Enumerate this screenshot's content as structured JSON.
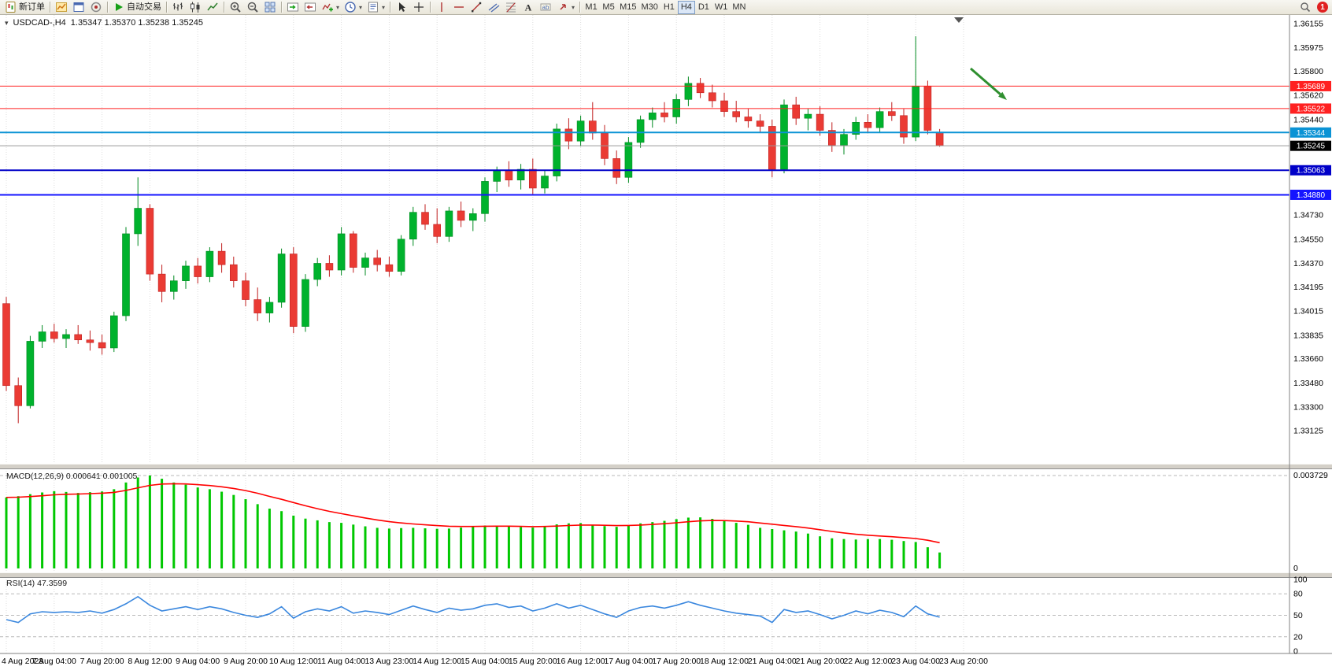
{
  "window": {
    "symbol_title": "USDCAD-,H4",
    "ohlc": "1.35347 1.35370 1.35238 1.35245"
  },
  "toolbar": {
    "notification_count": "1",
    "items": [
      {
        "type": "button",
        "name": "new-order-button",
        "icon": "new-order-icon",
        "label": "新订单"
      },
      {
        "type": "sep"
      },
      {
        "type": "button",
        "name": "charts-button",
        "icon": "charts-icon"
      },
      {
        "type": "button",
        "name": "data-window-button",
        "icon": "data-window-icon"
      },
      {
        "type": "button",
        "name": "navigator-button",
        "icon": "navigator-icon"
      },
      {
        "type": "sep"
      },
      {
        "type": "button",
        "name": "autotrading-button",
        "icon": "autotrading-icon",
        "label": "自动交易"
      },
      {
        "type": "sep"
      },
      {
        "type": "button",
        "name": "bar-chart-button",
        "icon": "bars-icon"
      },
      {
        "type": "button",
        "name": "candlestick-chart-button",
        "icon": "candles-icon"
      },
      {
        "type": "button",
        "name": "line-chart-button",
        "icon": "line-chart-icon"
      },
      {
        "type": "sep"
      },
      {
        "type": "button",
        "name": "zoom-in-button",
        "icon": "zoom-in-icon"
      },
      {
        "type": "button",
        "name": "zoom-out-button",
        "icon": "zoom-out-icon"
      },
      {
        "type": "button",
        "name": "tile-windows-button",
        "icon": "tile-windows-icon"
      },
      {
        "type": "sep"
      },
      {
        "type": "button",
        "name": "auto-scroll-button",
        "icon": "auto-scroll-icon"
      },
      {
        "type": "button",
        "name": "chart-shift-button",
        "icon": "chart-shift-icon"
      },
      {
        "type": "button",
        "name": "indicators-button",
        "icon": "indicators-icon",
        "dropdown": true
      },
      {
        "type": "button",
        "name": "periods-button",
        "icon": "periods-icon",
        "dropdown": true
      },
      {
        "type": "button",
        "name": "templates-button",
        "icon": "templates-icon",
        "dropdown": true
      },
      {
        "type": "sep"
      },
      {
        "type": "button",
        "name": "cursor-button",
        "icon": "cursor-icon"
      },
      {
        "type": "button",
        "name": "crosshair-button",
        "icon": "crosshair-icon"
      },
      {
        "type": "sep"
      },
      {
        "type": "button",
        "name": "vertical-line-button",
        "icon": "vline-icon"
      },
      {
        "type": "button",
        "name": "horizontal-line-button",
        "icon": "hline-icon"
      },
      {
        "type": "button",
        "name": "trendline-button",
        "icon": "trendline-icon"
      },
      {
        "type": "button",
        "name": "equidistant-channel-button",
        "icon": "channel-icon"
      },
      {
        "type": "button",
        "name": "fibonacci-button",
        "icon": "fibonacci-icon"
      },
      {
        "type": "button",
        "name": "text-button",
        "icon": "text-icon"
      },
      {
        "type": "button",
        "name": "text-label-button",
        "icon": "label-icon"
      },
      {
        "type": "button",
        "name": "arrows-button",
        "icon": "arrows-icon",
        "dropdown": true
      },
      {
        "type": "sep"
      },
      {
        "type": "tf",
        "name": "timeframe-m1-button",
        "label": "M1"
      },
      {
        "type": "tf",
        "name": "timeframe-m5-button",
        "label": "M5"
      },
      {
        "type": "tf",
        "name": "timeframe-m15-button",
        "label": "M15"
      },
      {
        "type": "tf",
        "name": "timeframe-m30-button",
        "label": "M30"
      },
      {
        "type": "tf",
        "name": "timeframe-h1-button",
        "label": "H1"
      },
      {
        "type": "tf",
        "name": "timeframe-h4-button",
        "label": "H4",
        "active": true
      },
      {
        "type": "tf",
        "name": "timeframe-d1-button",
        "label": "D1"
      },
      {
        "type": "tf",
        "name": "timeframe-w1-button",
        "label": "W1"
      },
      {
        "type": "tf",
        "name": "timeframe-mn-button",
        "label": "MN"
      }
    ]
  },
  "colors": {
    "bull": "#00b22d",
    "bull_edge": "#008a20",
    "bear": "#ea3b34",
    "bear_edge": "#c02020",
    "macd_hist": "#00c800",
    "macd_signal": "#ff0000",
    "rsi_line": "#3a87de",
    "grid": "#dcdcdc",
    "level_dash": "#b8b8b8",
    "axis_line": "#808080",
    "arrow": "#2f8f2f",
    "current_price_line": "#9a9a9a",
    "current_price_badge": "#000000"
  },
  "chart_data": {
    "type": "candlestick",
    "title": "USDCAD-,H4",
    "symbol": "USDCAD-",
    "timeframe": "H4",
    "current_bar": {
      "open": 1.35347,
      "high": 1.3537,
      "low": 1.35238,
      "close": 1.35245
    },
    "y_axis": {
      "min": 1.32872,
      "max": 1.36219,
      "tick_labels": [
        "1.36155",
        "1.35975",
        "1.35800",
        "1.35620",
        "1.35440",
        "1.34730",
        "1.34550",
        "1.34370",
        "1.34195",
        "1.34015",
        "1.33835",
        "1.33660",
        "1.33480",
        "1.33300",
        "1.33125"
      ]
    },
    "time_labels": [
      "4 Aug 2023",
      "7 Aug 04:00",
      "7 Aug 20:00",
      "8 Aug 12:00",
      "9 Aug 04:00",
      "9 Aug 20:00",
      "10 Aug 12:00",
      "11 Aug 04:00",
      "13 Aug 23:00",
      "14 Aug 12:00",
      "15 Aug 04:00",
      "15 Aug 20:00",
      "16 Aug 12:00",
      "17 Aug 04:00",
      "17 Aug 20:00",
      "18 Aug 12:00",
      "21 Aug 04:00",
      "21 Aug 20:00",
      "22 Aug 12:00",
      "23 Aug 04:00",
      "23 Aug 20:00"
    ],
    "candles": [
      [
        1.3407,
        1.3412,
        1.3342,
        1.3346
      ],
      [
        1.3346,
        1.3352,
        1.3318,
        1.3331
      ],
      [
        1.3331,
        1.3383,
        1.3329,
        1.3379
      ],
      [
        1.3379,
        1.3391,
        1.3374,
        1.3386
      ],
      [
        1.3386,
        1.3392,
        1.3378,
        1.3381
      ],
      [
        1.3381,
        1.3388,
        1.3374,
        1.3384
      ],
      [
        1.3384,
        1.3391,
        1.3377,
        1.338
      ],
      [
        1.338,
        1.3387,
        1.3372,
        1.3378
      ],
      [
        1.3378,
        1.3384,
        1.3369,
        1.3374
      ],
      [
        1.3374,
        1.3401,
        1.3371,
        1.3398
      ],
      [
        1.3398,
        1.3464,
        1.3394,
        1.3459
      ],
      [
        1.3459,
        1.3501,
        1.345,
        1.3478
      ],
      [
        1.3478,
        1.3481,
        1.3424,
        1.3429
      ],
      [
        1.3429,
        1.3436,
        1.3408,
        1.3416
      ],
      [
        1.3416,
        1.3428,
        1.341,
        1.3424
      ],
      [
        1.3424,
        1.3439,
        1.3418,
        1.3435
      ],
      [
        1.3435,
        1.3441,
        1.3422,
        1.3427
      ],
      [
        1.3427,
        1.3449,
        1.3423,
        1.3446
      ],
      [
        1.3446,
        1.3452,
        1.343,
        1.3436
      ],
      [
        1.3436,
        1.3442,
        1.3419,
        1.3424
      ],
      [
        1.3424,
        1.343,
        1.3405,
        1.341
      ],
      [
        1.341,
        1.3419,
        1.3394,
        1.34
      ],
      [
        1.34,
        1.3412,
        1.3393,
        1.3408
      ],
      [
        1.3408,
        1.3448,
        1.3404,
        1.3444
      ],
      [
        1.3444,
        1.3449,
        1.3385,
        1.339
      ],
      [
        1.339,
        1.3429,
        1.3386,
        1.3425
      ],
      [
        1.3425,
        1.3441,
        1.342,
        1.3437
      ],
      [
        1.3437,
        1.3443,
        1.3427,
        1.3432
      ],
      [
        1.3432,
        1.3464,
        1.3428,
        1.3459
      ],
      [
        1.3459,
        1.3461,
        1.343,
        1.3434
      ],
      [
        1.3434,
        1.3445,
        1.3428,
        1.3441
      ],
      [
        1.3441,
        1.3447,
        1.3431,
        1.3436
      ],
      [
        1.3436,
        1.3442,
        1.3427,
        1.3431
      ],
      [
        1.3431,
        1.3458,
        1.3428,
        1.3455
      ],
      [
        1.3455,
        1.3479,
        1.345,
        1.3475
      ],
      [
        1.3475,
        1.3481,
        1.3462,
        1.3466
      ],
      [
        1.3466,
        1.3478,
        1.3452,
        1.3457
      ],
      [
        1.3457,
        1.3479,
        1.3453,
        1.3476
      ],
      [
        1.3476,
        1.3483,
        1.3464,
        1.3469
      ],
      [
        1.3469,
        1.3478,
        1.3461,
        1.3474
      ],
      [
        1.3474,
        1.3501,
        1.3468,
        1.3498
      ],
      [
        1.3498,
        1.3509,
        1.349,
        1.3506
      ],
      [
        1.3506,
        1.3513,
        1.3494,
        1.3499
      ],
      [
        1.3499,
        1.3511,
        1.3492,
        1.3507
      ],
      [
        1.3507,
        1.3515,
        1.3488,
        1.3493
      ],
      [
        1.3493,
        1.3506,
        1.3489,
        1.3502
      ],
      [
        1.3502,
        1.3541,
        1.3498,
        1.3537
      ],
      [
        1.3537,
        1.3545,
        1.3522,
        1.3528
      ],
      [
        1.3528,
        1.3547,
        1.3524,
        1.3543
      ],
      [
        1.3543,
        1.3557,
        1.3529,
        1.3534
      ],
      [
        1.3534,
        1.354,
        1.351,
        1.3515
      ],
      [
        1.3515,
        1.3521,
        1.3496,
        1.3501
      ],
      [
        1.3501,
        1.3531,
        1.3497,
        1.3527
      ],
      [
        1.3527,
        1.3547,
        1.3523,
        1.3544
      ],
      [
        1.3544,
        1.3553,
        1.3538,
        1.3549
      ],
      [
        1.3549,
        1.3557,
        1.3542,
        1.3546
      ],
      [
        1.3546,
        1.3563,
        1.3541,
        1.3559
      ],
      [
        1.3559,
        1.3576,
        1.3554,
        1.3571
      ],
      [
        1.3571,
        1.3575,
        1.356,
        1.3564
      ],
      [
        1.3564,
        1.357,
        1.3553,
        1.3558
      ],
      [
        1.3558,
        1.3564,
        1.3546,
        1.355
      ],
      [
        1.355,
        1.3558,
        1.3542,
        1.3546
      ],
      [
        1.3546,
        1.3552,
        1.3538,
        1.3543
      ],
      [
        1.3543,
        1.3548,
        1.3534,
        1.3539
      ],
      [
        1.3539,
        1.3544,
        1.3501,
        1.3507
      ],
      [
        1.3507,
        1.3559,
        1.3504,
        1.3555
      ],
      [
        1.3555,
        1.3561,
        1.354,
        1.3545
      ],
      [
        1.3545,
        1.3552,
        1.3536,
        1.3548
      ],
      [
        1.3548,
        1.3554,
        1.3532,
        1.3536
      ],
      [
        1.3536,
        1.3542,
        1.352,
        1.3525
      ],
      [
        1.3525,
        1.3537,
        1.3518,
        1.3533
      ],
      [
        1.3533,
        1.3546,
        1.3529,
        1.3542
      ],
      [
        1.3542,
        1.3548,
        1.3534,
        1.3538
      ],
      [
        1.3538,
        1.3553,
        1.3534,
        1.355
      ],
      [
        1.355,
        1.3557,
        1.3543,
        1.3547
      ],
      [
        1.3547,
        1.3552,
        1.3526,
        1.3531
      ],
      [
        1.3531,
        1.3606,
        1.3528,
        1.3569
      ],
      [
        1.3569,
        1.3573,
        1.3533,
        1.3536
      ],
      [
        1.35347,
        1.3537,
        1.35238,
        1.35245
      ]
    ],
    "hlines": [
      {
        "price": 1.35689,
        "label": "1.35689",
        "color": "#ff2020",
        "width": 1
      },
      {
        "price": 1.35522,
        "label": "1.35522",
        "color": "#ff2020",
        "width": 1
      },
      {
        "price": 1.35344,
        "label": "1.35344",
        "color": "#0b93d5",
        "width": 2
      },
      {
        "price": 1.35063,
        "label": "1.35063",
        "color": "#0000c8",
        "width": 2
      },
      {
        "price": 1.3488,
        "label": "1.34880",
        "color": "#1414ff",
        "width": 2
      }
    ],
    "current_price": {
      "value": 1.35245,
      "label": "1.35245"
    },
    "annotations": [
      {
        "type": "arrow",
        "from": [
          1233,
          87
        ],
        "to": [
          1279,
          127
        ]
      }
    ],
    "shift_marker_x": 1218,
    "macd": {
      "label": "MACD(12,26,9)",
      "values_text": "0.000641 0.001005",
      "main_value": 0.000641,
      "signal_value": 0.001005,
      "max": 0.003729,
      "axis_labels": [
        "0.003729",
        "0"
      ],
      "histogram": [
        0.00285,
        0.0029,
        0.00298,
        0.00305,
        0.0031,
        0.00307,
        0.00303,
        0.00306,
        0.00309,
        0.00318,
        0.00345,
        0.00365,
        0.003729,
        0.0036,
        0.00345,
        0.00336,
        0.00325,
        0.00318,
        0.00308,
        0.00295,
        0.00278,
        0.00258,
        0.0024,
        0.0023,
        0.00212,
        0.002,
        0.00193,
        0.00186,
        0.00183,
        0.00176,
        0.00169,
        0.00163,
        0.0016,
        0.00162,
        0.00163,
        0.00161,
        0.00159,
        0.0016,
        0.00164,
        0.00169,
        0.00172,
        0.00172,
        0.00169,
        0.00166,
        0.00164,
        0.0017,
        0.00177,
        0.00181,
        0.00182,
        0.00174,
        0.0017,
        0.00167,
        0.00174,
        0.00181,
        0.00186,
        0.00191,
        0.00198,
        0.00204,
        0.00205,
        0.00199,
        0.00191,
        0.00183,
        0.00175,
        0.00163,
        0.00158,
        0.00153,
        0.00148,
        0.0014,
        0.00129,
        0.00121,
        0.00118,
        0.00116,
        0.00118,
        0.00118,
        0.00115,
        0.0011,
        0.00106,
        0.00085,
        0.000641
      ]
    },
    "rsi": {
      "label": "RSI(14)",
      "value_text": "47.3599",
      "value": 47.3599,
      "levels": [
        80,
        50,
        20
      ],
      "axis_labels": [
        "100",
        "80",
        "50",
        "20",
        "0"
      ],
      "series": [
        44,
        40,
        52,
        55,
        54,
        55,
        54,
        56,
        53,
        58,
        66,
        76,
        64,
        56,
        59,
        62,
        58,
        62,
        59,
        54,
        50,
        47,
        52,
        62,
        46,
        55,
        59,
        56,
        62,
        53,
        56,
        54,
        51,
        57,
        63,
        58,
        54,
        60,
        57,
        59,
        64,
        66,
        61,
        63,
        56,
        60,
        66,
        60,
        64,
        58,
        52,
        47,
        56,
        61,
        63,
        60,
        64,
        69,
        64,
        60,
        56,
        53,
        51,
        49,
        40,
        58,
        54,
        56,
        51,
        45,
        50,
        56,
        52,
        57,
        54,
        48,
        63,
        52,
        47.36
      ]
    }
  }
}
